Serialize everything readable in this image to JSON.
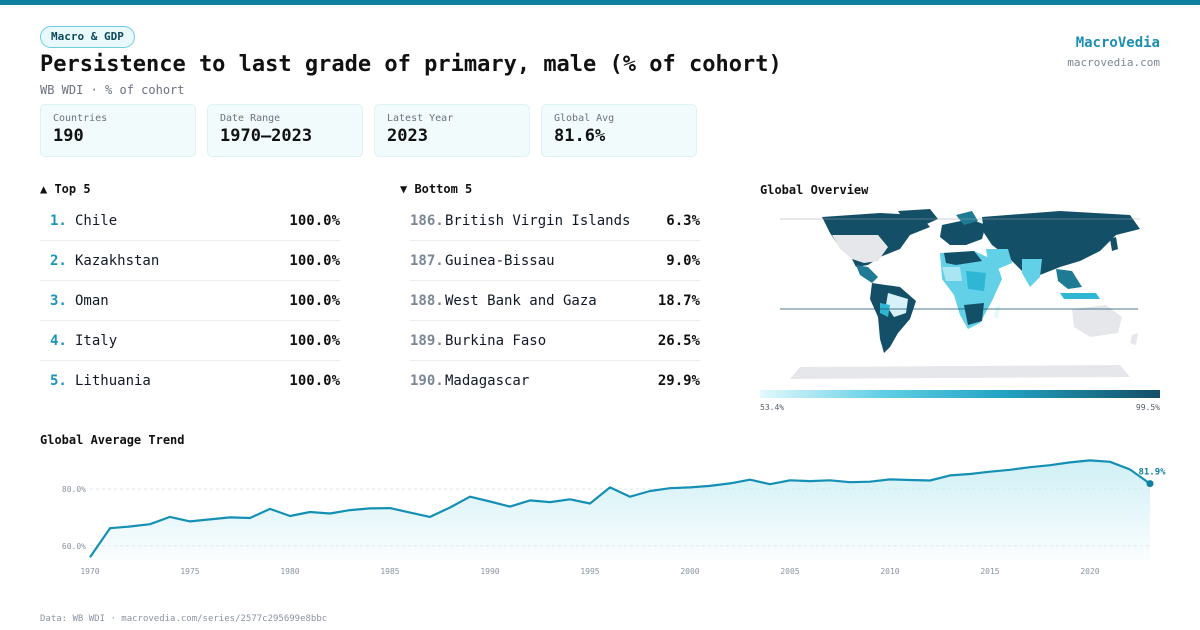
{
  "header": {
    "badge": "Macro & GDP",
    "title": "Persistence to last grade of primary, male (% of cohort)",
    "subtitle": "WB WDI · % of cohort",
    "brand": "MacroVedia",
    "brand_url": "macrovedia.com"
  },
  "stats": [
    {
      "label": "Countries",
      "value": "190"
    },
    {
      "label": "Date Range",
      "value": "1970–2023"
    },
    {
      "label": "Latest Year",
      "value": "2023"
    },
    {
      "label": "Global Avg",
      "value": "81.6%"
    }
  ],
  "top5": {
    "heading": "▲ Top 5",
    "items": [
      {
        "rank": "1.",
        "name": "Chile",
        "value": "100.0%"
      },
      {
        "rank": "2.",
        "name": "Kazakhstan",
        "value": "100.0%"
      },
      {
        "rank": "3.",
        "name": "Oman",
        "value": "100.0%"
      },
      {
        "rank": "4.",
        "name": "Italy",
        "value": "100.0%"
      },
      {
        "rank": "5.",
        "name": "Lithuania",
        "value": "100.0%"
      }
    ]
  },
  "bottom5": {
    "heading": "▼ Bottom 5",
    "items": [
      {
        "rank": "186.",
        "name": "British Virgin Islands",
        "value": "6.3%"
      },
      {
        "rank": "187.",
        "name": "Guinea-Bissau",
        "value": "9.0%"
      },
      {
        "rank": "188.",
        "name": "West Bank and Gaza",
        "value": "18.7%"
      },
      {
        "rank": "189.",
        "name": "Burkina Faso",
        "value": "26.5%"
      },
      {
        "rank": "190.",
        "name": "Madagascar",
        "value": "29.9%"
      }
    ]
  },
  "map": {
    "heading": "Global Overview",
    "legend_min": "53.4%",
    "legend_max": "99.5%"
  },
  "trend_heading": "Global Average Trend",
  "footer": "Data: WB WDI · macrovedia.com/series/2577c295699e8bbc",
  "colors": {
    "accent": "#1a8fb3",
    "line": "#1590b5",
    "area": "#cdeff5"
  },
  "chart_data": {
    "type": "area",
    "title": "Global Average Trend",
    "x": [
      1970,
      1971,
      1972,
      1973,
      1974,
      1975,
      1976,
      1977,
      1978,
      1979,
      1980,
      1981,
      1982,
      1983,
      1984,
      1985,
      1986,
      1987,
      1988,
      1989,
      1990,
      1991,
      1992,
      1993,
      1994,
      1995,
      1996,
      1997,
      1998,
      1999,
      2000,
      2001,
      2002,
      2003,
      2004,
      2005,
      2006,
      2007,
      2008,
      2009,
      2010,
      2011,
      2012,
      2013,
      2014,
      2015,
      2016,
      2017,
      2018,
      2019,
      2020,
      2021,
      2022,
      2023
    ],
    "y": [
      56.0,
      66.2,
      66.8,
      67.6,
      70.2,
      68.6,
      69.3,
      70.0,
      69.8,
      73.0,
      70.5,
      71.9,
      71.4,
      72.6,
      73.2,
      73.3,
      71.7,
      70.2,
      73.5,
      77.3,
      75.6,
      73.8,
      76.0,
      75.4,
      76.4,
      74.9,
      80.6,
      77.3,
      79.3,
      80.3,
      80.6,
      81.1,
      82.0,
      83.3,
      81.7,
      83.1,
      82.8,
      83.1,
      82.4,
      82.6,
      83.4,
      83.2,
      83.0,
      84.8,
      85.3,
      86.1,
      86.8,
      87.7,
      88.4,
      89.4,
      90.1,
      89.6,
      86.9,
      81.9
    ],
    "yticks": [
      60,
      80
    ],
    "ytick_labels": [
      "60.0%",
      "80.0%"
    ],
    "xticks": [
      1970,
      1975,
      1980,
      1985,
      1990,
      1995,
      2000,
      2005,
      2010,
      2015,
      2020
    ],
    "ylim": [
      55,
      92
    ],
    "end_label": "81.9%",
    "grid": true
  }
}
